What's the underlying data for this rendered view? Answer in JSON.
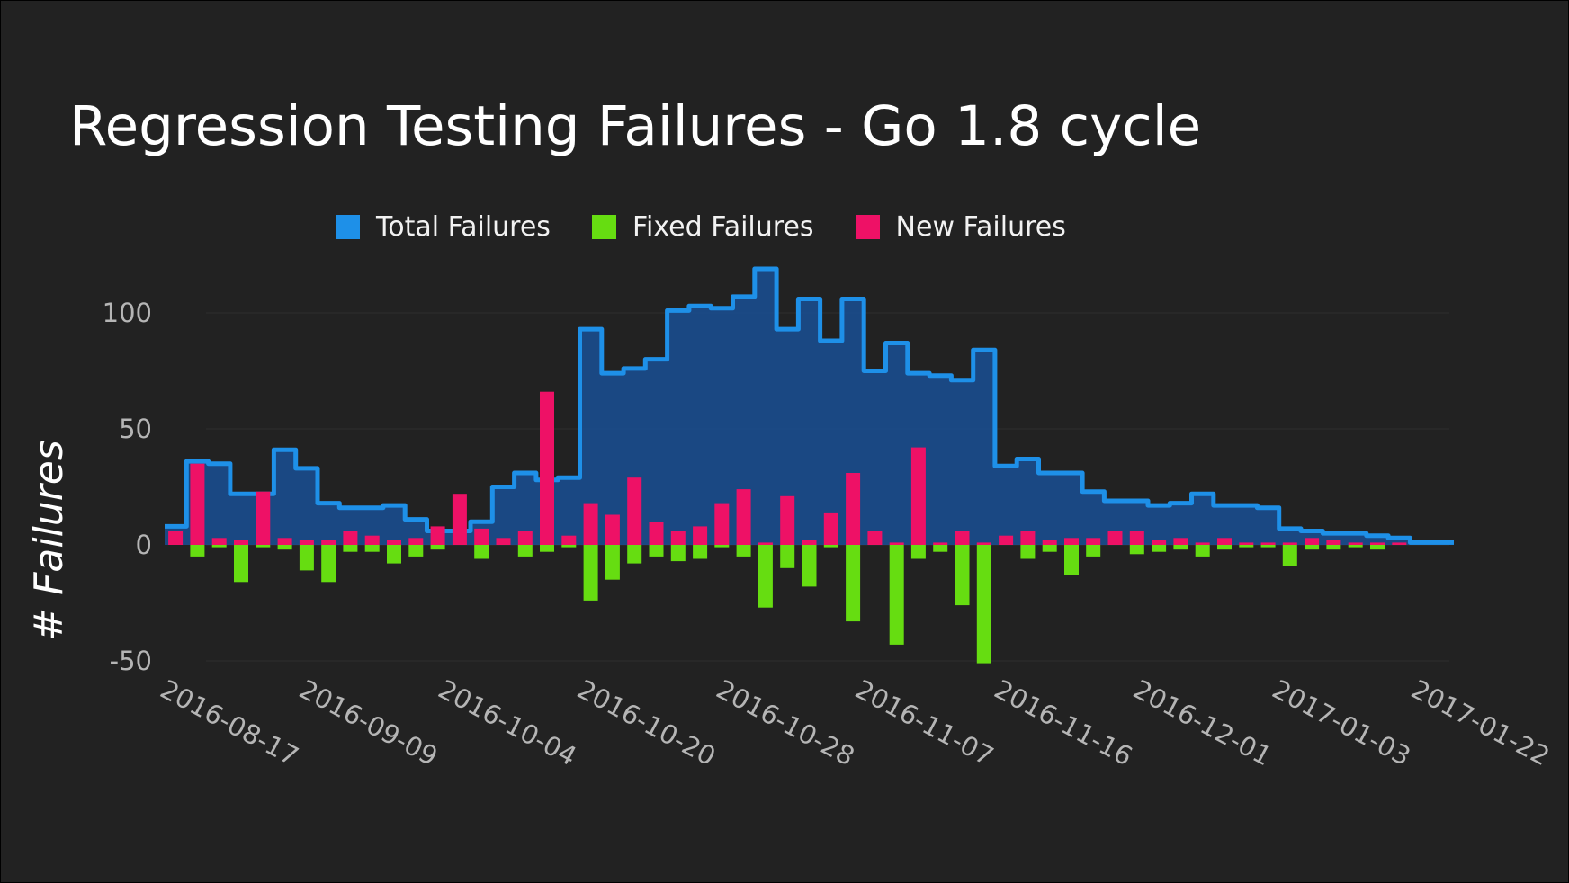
{
  "title": "Regression Testing Failures - Go 1.8 cycle",
  "colors": {
    "background": "#222222",
    "total": "#1e90e8",
    "total_fill": "#1a4c8c",
    "fixed": "#66dd11",
    "new": "#ee1166"
  },
  "legend": [
    {
      "label": "Total Failures",
      "color": "#1e90e8"
    },
    {
      "label": "Fixed Failures",
      "color": "#66dd11"
    },
    {
      "label": "New Failures",
      "color": "#ee1166"
    }
  ],
  "chart_data": {
    "type": "bar",
    "title": "Regression Testing Failures - Go 1.8 cycle",
    "ylabel": "# Failures",
    "xlabel": "",
    "ylim": [
      -55,
      125
    ],
    "yticks": [
      100,
      50,
      0,
      -50
    ],
    "grid": true,
    "legend_position": "top",
    "x_tick_labels": [
      "2016-08-17",
      "2016-09-09",
      "2016-10-04",
      "2016-10-20",
      "2016-10-28",
      "2016-11-07",
      "2016-11-16",
      "2016-12-01",
      "2017-01-03",
      "2017-01-22"
    ],
    "series": [
      {
        "name": "Total Failures",
        "chart_type": "step-area",
        "values": [
          8,
          36,
          35,
          22,
          22,
          41,
          33,
          18,
          16,
          16,
          17,
          11,
          6,
          6,
          10,
          25,
          31,
          28,
          29,
          93,
          74,
          76,
          80,
          101,
          103,
          102,
          107,
          119,
          93,
          106,
          88,
          106,
          75,
          87,
          74,
          73,
          71,
          84,
          34,
          37,
          31,
          31,
          23,
          19,
          19,
          17,
          18,
          22,
          17,
          17,
          16,
          7,
          6,
          5,
          5,
          4,
          3,
          1,
          1
        ]
      },
      {
        "name": "Fixed Failures",
        "chart_type": "bar",
        "values": [
          0,
          -5,
          -1,
          -16,
          -1,
          -2,
          -11,
          -16,
          -3,
          -3,
          -8,
          -5,
          -2,
          0,
          -6,
          0,
          -5,
          -3,
          -1,
          -24,
          -15,
          -8,
          -5,
          -7,
          -6,
          -1,
          -5,
          -27,
          -10,
          -18,
          -1,
          -33,
          0,
          -43,
          -6,
          -3,
          -26,
          -51,
          0,
          -6,
          -3,
          -13,
          -5,
          0,
          -4,
          -3,
          -2,
          -5,
          -2,
          -1,
          -1,
          -9,
          -2,
          -2,
          -1,
          -2,
          0,
          0,
          0
        ]
      },
      {
        "name": "New Failures",
        "chart_type": "bar",
        "values": [
          6,
          35,
          3,
          2,
          23,
          3,
          2,
          2,
          6,
          4,
          2,
          3,
          8,
          22,
          7,
          3,
          6,
          66,
          4,
          18,
          13,
          29,
          10,
          6,
          8,
          18,
          24,
          1,
          21,
          2,
          14,
          31,
          6,
          1,
          42,
          1,
          6,
          1,
          4,
          6,
          2,
          3,
          3,
          6,
          6,
          2,
          3,
          1,
          3,
          1,
          1,
          1,
          3,
          2,
          1,
          1,
          1,
          0,
          0
        ]
      }
    ]
  }
}
